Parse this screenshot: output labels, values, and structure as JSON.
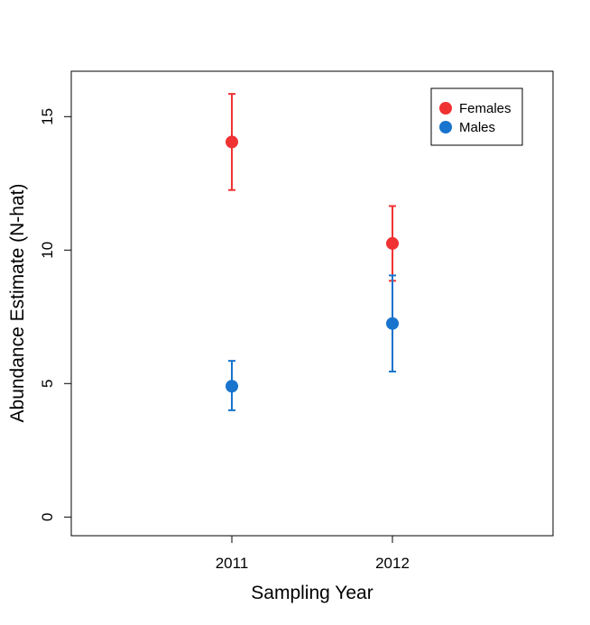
{
  "chart_data": {
    "type": "scatter",
    "title": "",
    "xlabel": "Sampling Year",
    "ylabel": "Abundance Estimate (N-hat)",
    "categories": [
      "2011",
      "2012"
    ],
    "xlim": [
      0,
      3
    ],
    "ylim": [
      -0.7,
      16.7
    ],
    "yticks": [
      0,
      5,
      10,
      15
    ],
    "grid": false,
    "legend": "top-right",
    "series": [
      {
        "name": "Females",
        "color": "#f03232",
        "values": [
          14.05,
          10.25
        ],
        "lower": [
          12.25,
          8.85
        ],
        "upper": [
          15.85,
          11.65
        ]
      },
      {
        "name": "Males",
        "color": "#1874cd",
        "values": [
          4.9,
          7.25
        ],
        "lower": [
          4.0,
          5.45
        ],
        "upper": [
          5.85,
          9.05
        ]
      }
    ]
  }
}
